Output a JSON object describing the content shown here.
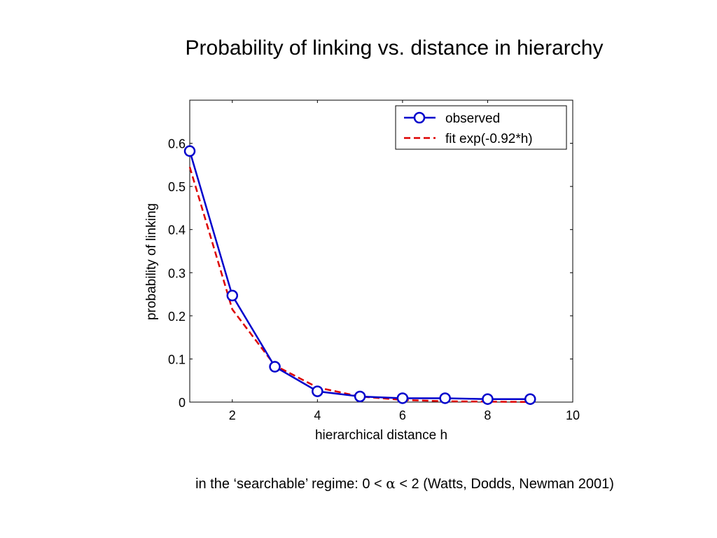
{
  "title": "Probability of linking vs. distance in hierarchy",
  "footnote": {
    "before": "in the ‘searchable’ regime: 0 < ",
    "symbol": "α",
    "after": " < 2 (Watts, Dodds, Newman 2001)"
  },
  "colors": {
    "observed": "#0000cc",
    "fit": "#dd0000",
    "axis": "#000000"
  },
  "chart_data": {
    "type": "line",
    "title": "",
    "xlabel": "hierarchical distance h",
    "ylabel": "probability of linking",
    "xlim": [
      1,
      10
    ],
    "ylim": [
      0,
      0.7
    ],
    "xticks": [
      2,
      4,
      6,
      8,
      10
    ],
    "xtick_labels": [
      "2",
      "4",
      "6",
      "8",
      "10"
    ],
    "yticks": [
      0,
      0.1,
      0.2,
      0.3,
      0.4,
      0.5,
      0.6
    ],
    "ytick_labels": [
      "0",
      "0.1",
      "0.2",
      "0.3",
      "0.4",
      "0.5",
      "0.6"
    ],
    "grid": false,
    "legend_position": "top-right",
    "series": [
      {
        "name": "observed",
        "style": "solid-with-circle-markers",
        "x": [
          1,
          2,
          3,
          4,
          5,
          6,
          7,
          8,
          9
        ],
        "y": [
          0.582,
          0.247,
          0.082,
          0.025,
          0.013,
          0.009,
          0.009,
          0.007,
          0.007
        ]
      },
      {
        "name": "fit exp(-0.92*h)",
        "style": "dashed",
        "x": [
          1,
          2,
          3,
          4,
          5,
          6,
          7,
          8,
          9
        ],
        "y": [
          0.545,
          0.215,
          0.085,
          0.034,
          0.013,
          0.005,
          0.002,
          0.001,
          0.0003
        ]
      }
    ]
  }
}
